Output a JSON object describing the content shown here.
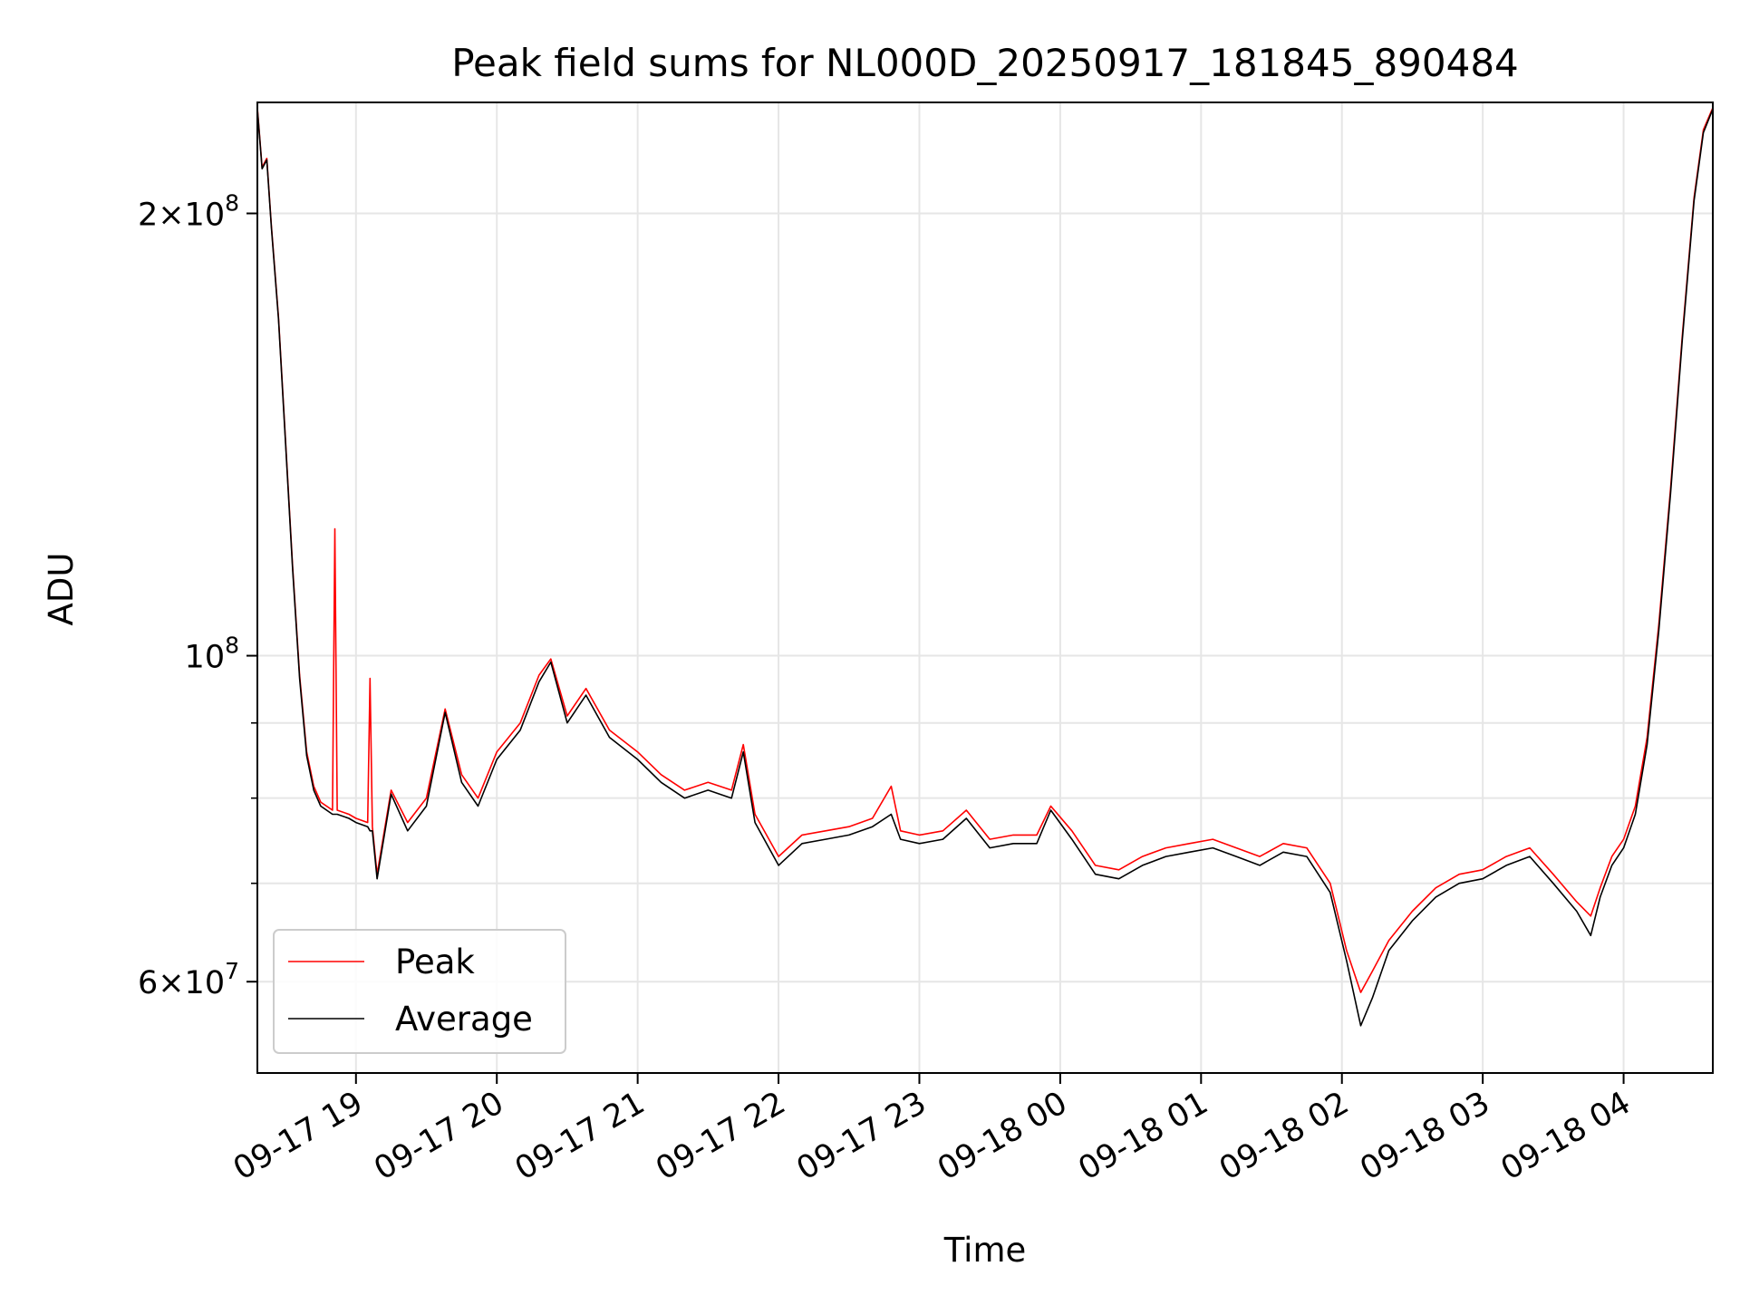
{
  "chart_data": {
    "type": "line",
    "title": "Peak field sums for NL000D_20250917_181845_890484",
    "xlabel": "Time",
    "ylabel": "ADU",
    "yscale": "log",
    "grid": true,
    "legend_position": "lower-left",
    "x_range": [
      "09-17 18:18",
      "09-18 04:38"
    ],
    "ylim": [
      52000000,
      238000000
    ],
    "x_ticks": [
      "09-17 19",
      "09-17 20",
      "09-17 21",
      "09-17 22",
      "09-17 23",
      "09-18 00",
      "09-18 01",
      "09-18 02",
      "09-18 03",
      "09-18 04"
    ],
    "y_ticks": [
      {
        "value": 200000000,
        "label_mantissa": "2",
        "label_exp": "8"
      },
      {
        "value": 100000000,
        "label_mantissa": "",
        "label_exp": "8"
      },
      {
        "value": 60000000,
        "label_mantissa": "6",
        "label_exp": "7"
      }
    ],
    "y_minor_ticks": [
      70000000,
      80000000,
      90000000
    ],
    "series": [
      {
        "name": "Peak",
        "color": "#ff0000",
        "points": [
          [
            "09-17 18:18",
            236000000
          ],
          [
            "09-17 18:20",
            215000000
          ],
          [
            "09-17 18:22",
            218000000
          ],
          [
            "09-17 18:24",
            196000000
          ],
          [
            "09-17 18:27",
            170000000
          ],
          [
            "09-17 18:30",
            140000000
          ],
          [
            "09-17 18:33",
            115000000
          ],
          [
            "09-17 18:36",
            97000000
          ],
          [
            "09-17 18:39",
            86000000
          ],
          [
            "09-17 18:42",
            81500000
          ],
          [
            "09-17 18:45",
            79500000
          ],
          [
            "09-17 18:50",
            78500000
          ],
          [
            "09-17 18:51",
            122000000
          ],
          [
            "09-17 18:52",
            78500000
          ],
          [
            "09-17 18:57",
            78000000
          ],
          [
            "09-17 19:00",
            77500000
          ],
          [
            "09-17 19:05",
            77000000
          ],
          [
            "09-17 19:06",
            96500000
          ],
          [
            "09-17 19:07",
            76500000
          ],
          [
            "09-17 19:09",
            71000000
          ],
          [
            "09-17 19:15",
            81000000
          ],
          [
            "09-17 19:22",
            77000000
          ],
          [
            "09-17 19:30",
            80000000
          ],
          [
            "09-17 19:38",
            92000000
          ],
          [
            "09-17 19:45",
            83000000
          ],
          [
            "09-17 19:52",
            80000000
          ],
          [
            "09-17 20:00",
            86000000
          ],
          [
            "09-17 20:10",
            90000000
          ],
          [
            "09-17 20:18",
            97000000
          ],
          [
            "09-17 20:23",
            99500000
          ],
          [
            "09-17 20:30",
            91000000
          ],
          [
            "09-17 20:38",
            95000000
          ],
          [
            "09-17 20:48",
            89000000
          ],
          [
            "09-17 21:00",
            86000000
          ],
          [
            "09-17 21:10",
            83000000
          ],
          [
            "09-17 21:20",
            81000000
          ],
          [
            "09-17 21:30",
            82000000
          ],
          [
            "09-17 21:40",
            81000000
          ],
          [
            "09-17 21:45",
            87000000
          ],
          [
            "09-17 21:50",
            78000000
          ],
          [
            "09-17 22:00",
            73000000
          ],
          [
            "09-17 22:10",
            75500000
          ],
          [
            "09-17 22:20",
            76000000
          ],
          [
            "09-17 22:30",
            76500000
          ],
          [
            "09-17 22:40",
            77500000
          ],
          [
            "09-17 22:48",
            81500000
          ],
          [
            "09-17 22:52",
            76000000
          ],
          [
            "09-17 23:00",
            75500000
          ],
          [
            "09-17 23:10",
            76000000
          ],
          [
            "09-17 23:20",
            78500000
          ],
          [
            "09-17 23:30",
            75000000
          ],
          [
            "09-17 23:40",
            75500000
          ],
          [
            "09-17 23:50",
            75500000
          ],
          [
            "09-17 23:56",
            79000000
          ],
          [
            "09-18 00:05",
            76000000
          ],
          [
            "09-18 00:15",
            72000000
          ],
          [
            "09-18 00:25",
            71500000
          ],
          [
            "09-18 00:35",
            73000000
          ],
          [
            "09-18 00:45",
            74000000
          ],
          [
            "09-18 00:55",
            74500000
          ],
          [
            "09-18 01:05",
            75000000
          ],
          [
            "09-18 01:15",
            74000000
          ],
          [
            "09-18 01:25",
            73000000
          ],
          [
            "09-18 01:35",
            74500000
          ],
          [
            "09-18 01:45",
            74000000
          ],
          [
            "09-18 01:55",
            70000000
          ],
          [
            "09-18 02:02",
            63000000
          ],
          [
            "09-18 02:08",
            59000000
          ],
          [
            "09-18 02:13",
            61000000
          ],
          [
            "09-18 02:20",
            64000000
          ],
          [
            "09-18 02:30",
            67000000
          ],
          [
            "09-18 02:40",
            69500000
          ],
          [
            "09-18 02:50",
            71000000
          ],
          [
            "09-18 03:00",
            71500000
          ],
          [
            "09-18 03:10",
            73000000
          ],
          [
            "09-18 03:20",
            74000000
          ],
          [
            "09-18 03:30",
            71000000
          ],
          [
            "09-18 03:40",
            68000000
          ],
          [
            "09-18 03:46",
            66500000
          ],
          [
            "09-18 03:50",
            69500000
          ],
          [
            "09-18 03:55",
            73000000
          ],
          [
            "09-18 04:00",
            75000000
          ],
          [
            "09-18 04:05",
            79000000
          ],
          [
            "09-18 04:10",
            88000000
          ],
          [
            "09-18 04:15",
            105000000
          ],
          [
            "09-18 04:20",
            130000000
          ],
          [
            "09-18 04:25",
            165000000
          ],
          [
            "09-18 04:30",
            205000000
          ],
          [
            "09-18 04:34",
            228000000
          ],
          [
            "09-18 04:38",
            236000000
          ]
        ]
      },
      {
        "name": "Average",
        "color": "#000000",
        "points": [
          [
            "09-17 18:18",
            235500000
          ],
          [
            "09-17 18:20",
            214500000
          ],
          [
            "09-17 18:22",
            217500000
          ],
          [
            "09-17 18:24",
            195500000
          ],
          [
            "09-17 18:27",
            169500000
          ],
          [
            "09-17 18:30",
            139500000
          ],
          [
            "09-17 18:33",
            114500000
          ],
          [
            "09-17 18:36",
            96500000
          ],
          [
            "09-17 18:39",
            85500000
          ],
          [
            "09-17 18:42",
            81000000
          ],
          [
            "09-17 18:45",
            79000000
          ],
          [
            "09-17 18:50",
            78000000
          ],
          [
            "09-17 18:51",
            78000000
          ],
          [
            "09-17 18:52",
            78000000
          ],
          [
            "09-17 18:57",
            77500000
          ],
          [
            "09-17 19:00",
            77000000
          ],
          [
            "09-17 19:05",
            76500000
          ],
          [
            "09-17 19:06",
            76000000
          ],
          [
            "09-17 19:07",
            76000000
          ],
          [
            "09-17 19:09",
            70500000
          ],
          [
            "09-17 19:15",
            80500000
          ],
          [
            "09-17 19:22",
            76000000
          ],
          [
            "09-17 19:30",
            79000000
          ],
          [
            "09-17 19:38",
            91500000
          ],
          [
            "09-17 19:45",
            82000000
          ],
          [
            "09-17 19:52",
            79000000
          ],
          [
            "09-17 20:00",
            85000000
          ],
          [
            "09-17 20:10",
            89000000
          ],
          [
            "09-17 20:18",
            96000000
          ],
          [
            "09-17 20:23",
            99000000
          ],
          [
            "09-17 20:30",
            90000000
          ],
          [
            "09-17 20:38",
            94000000
          ],
          [
            "09-17 20:48",
            88000000
          ],
          [
            "09-17 21:00",
            85000000
          ],
          [
            "09-17 21:10",
            82000000
          ],
          [
            "09-17 21:20",
            80000000
          ],
          [
            "09-17 21:30",
            81000000
          ],
          [
            "09-17 21:40",
            80000000
          ],
          [
            "09-17 21:45",
            86000000
          ],
          [
            "09-17 21:50",
            77000000
          ],
          [
            "09-17 22:00",
            72000000
          ],
          [
            "09-17 22:10",
            74500000
          ],
          [
            "09-17 22:20",
            75000000
          ],
          [
            "09-17 22:30",
            75500000
          ],
          [
            "09-17 22:40",
            76500000
          ],
          [
            "09-17 22:48",
            78000000
          ],
          [
            "09-17 22:52",
            75000000
          ],
          [
            "09-17 23:00",
            74500000
          ],
          [
            "09-17 23:10",
            75000000
          ],
          [
            "09-17 23:20",
            77500000
          ],
          [
            "09-17 23:30",
            74000000
          ],
          [
            "09-17 23:40",
            74500000
          ],
          [
            "09-17 23:50",
            74500000
          ],
          [
            "09-17 23:56",
            78500000
          ],
          [
            "09-18 00:05",
            75000000
          ],
          [
            "09-18 00:15",
            71000000
          ],
          [
            "09-18 00:25",
            70500000
          ],
          [
            "09-18 00:35",
            72000000
          ],
          [
            "09-18 00:45",
            73000000
          ],
          [
            "09-18 00:55",
            73500000
          ],
          [
            "09-18 01:05",
            74000000
          ],
          [
            "09-18 01:15",
            73000000
          ],
          [
            "09-18 01:25",
            72000000
          ],
          [
            "09-18 01:35",
            73500000
          ],
          [
            "09-18 01:45",
            73000000
          ],
          [
            "09-18 01:55",
            69000000
          ],
          [
            "09-18 02:02",
            62000000
          ],
          [
            "09-18 02:08",
            56000000
          ],
          [
            "09-18 02:13",
            58500000
          ],
          [
            "09-18 02:20",
            63000000
          ],
          [
            "09-18 02:30",
            66000000
          ],
          [
            "09-18 02:40",
            68500000
          ],
          [
            "09-18 02:50",
            70000000
          ],
          [
            "09-18 03:00",
            70500000
          ],
          [
            "09-18 03:10",
            72000000
          ],
          [
            "09-18 03:20",
            73000000
          ],
          [
            "09-18 03:30",
            70000000
          ],
          [
            "09-18 03:40",
            67000000
          ],
          [
            "09-18 03:46",
            64500000
          ],
          [
            "09-18 03:50",
            68500000
          ],
          [
            "09-18 03:55",
            72000000
          ],
          [
            "09-18 04:00",
            74000000
          ],
          [
            "09-18 04:05",
            78000000
          ],
          [
            "09-18 04:10",
            87000000
          ],
          [
            "09-18 04:15",
            104000000
          ],
          [
            "09-18 04:20",
            129000000
          ],
          [
            "09-18 04:25",
            164000000
          ],
          [
            "09-18 04:30",
            204000000
          ],
          [
            "09-18 04:34",
            227000000
          ],
          [
            "09-18 04:38",
            235500000
          ]
        ]
      }
    ]
  }
}
